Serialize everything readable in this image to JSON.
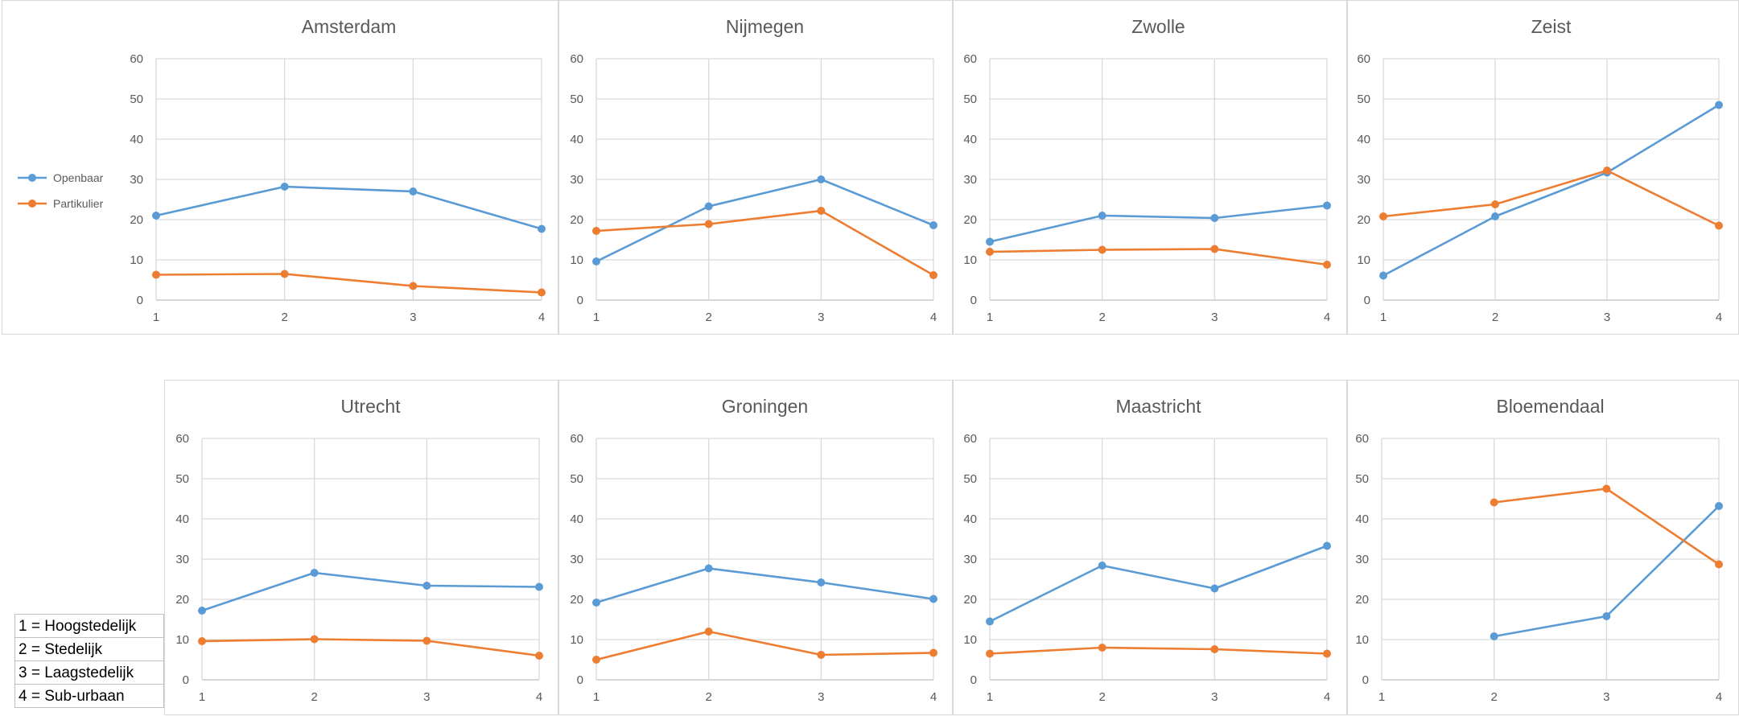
{
  "legend": {
    "series": [
      {
        "name": "Openbaar",
        "color": "#5b9bd5"
      },
      {
        "name": "Partikulier",
        "color": "#ed7d31"
      }
    ]
  },
  "key": [
    "1 = Hoogstedelijk",
    "2 = Stedelijk",
    "3 = Laagstedelijk",
    "4 = Sub-urbaan"
  ],
  "chart_data": [
    {
      "type": "line",
      "title": "Amsterdam",
      "x": [
        1,
        2,
        3,
        4
      ],
      "ylim": [
        0,
        60
      ],
      "yticks": [
        0,
        10,
        20,
        30,
        40,
        50,
        60
      ],
      "grid": true,
      "series": [
        {
          "name": "Openbaar",
          "values": [
            21,
            28.2,
            27,
            17.7
          ]
        },
        {
          "name": "Partikulier",
          "values": [
            6.3,
            6.5,
            3.5,
            1.9
          ]
        }
      ]
    },
    {
      "type": "line",
      "title": "Nijmegen",
      "x": [
        1,
        2,
        3,
        4
      ],
      "ylim": [
        0,
        60
      ],
      "yticks": [
        0,
        10,
        20,
        30,
        40,
        50,
        60
      ],
      "grid": true,
      "series": [
        {
          "name": "Openbaar",
          "values": [
            9.6,
            23.3,
            30,
            18.6
          ]
        },
        {
          "name": "Partikulier",
          "values": [
            17.2,
            18.9,
            22.2,
            6.2
          ]
        }
      ]
    },
    {
      "type": "line",
      "title": "Zwolle",
      "x": [
        1,
        2,
        3,
        4
      ],
      "ylim": [
        0,
        60
      ],
      "yticks": [
        0,
        10,
        20,
        30,
        40,
        50,
        60
      ],
      "grid": true,
      "series": [
        {
          "name": "Openbaar",
          "values": [
            14.5,
            21,
            20.4,
            23.5
          ]
        },
        {
          "name": "Partikulier",
          "values": [
            12,
            12.5,
            12.7,
            8.8
          ]
        }
      ]
    },
    {
      "type": "line",
      "title": "Zeist",
      "x": [
        1,
        2,
        3,
        4
      ],
      "ylim": [
        0,
        60
      ],
      "yticks": [
        0,
        10,
        20,
        30,
        40,
        50,
        60
      ],
      "grid": true,
      "series": [
        {
          "name": "Openbaar",
          "values": [
            6.1,
            20.8,
            31.7,
            48.5
          ]
        },
        {
          "name": "Partikulier",
          "values": [
            20.8,
            23.8,
            32.2,
            18.5
          ]
        }
      ]
    },
    {
      "type": "line",
      "title": "Utrecht",
      "x": [
        1,
        2,
        3,
        4
      ],
      "ylim": [
        0,
        60
      ],
      "yticks": [
        0,
        10,
        20,
        30,
        40,
        50,
        60
      ],
      "grid": true,
      "series": [
        {
          "name": "Openbaar",
          "values": [
            17.2,
            26.6,
            23.4,
            23.1
          ]
        },
        {
          "name": "Partikulier",
          "values": [
            9.6,
            10.1,
            9.7,
            6
          ]
        }
      ]
    },
    {
      "type": "line",
      "title": "Groningen",
      "x": [
        1,
        2,
        3,
        4
      ],
      "ylim": [
        0,
        60
      ],
      "yticks": [
        0,
        10,
        20,
        30,
        40,
        50,
        60
      ],
      "grid": true,
      "series": [
        {
          "name": "Openbaar",
          "values": [
            19.2,
            27.7,
            24.2,
            20.1
          ]
        },
        {
          "name": "Partikulier",
          "values": [
            5,
            12,
            6.2,
            6.7
          ]
        }
      ]
    },
    {
      "type": "line",
      "title": "Maastricht",
      "x": [
        1,
        2,
        3,
        4
      ],
      "ylim": [
        0,
        60
      ],
      "yticks": [
        0,
        10,
        20,
        30,
        40,
        50,
        60
      ],
      "grid": true,
      "series": [
        {
          "name": "Openbaar",
          "values": [
            14.5,
            28.4,
            22.7,
            33.3
          ]
        },
        {
          "name": "Partikulier",
          "values": [
            6.5,
            8,
            7.6,
            6.5
          ]
        }
      ]
    },
    {
      "type": "line",
      "title": "Bloemendaal",
      "x": [
        1,
        2,
        3,
        4
      ],
      "ylim": [
        0,
        60
      ],
      "yticks": [
        0,
        10,
        20,
        30,
        40,
        50,
        60
      ],
      "grid": true,
      "series": [
        {
          "name": "Openbaar",
          "values": [
            null,
            10.8,
            15.8,
            43.2
          ]
        },
        {
          "name": "Partikulier",
          "values": [
            null,
            44.1,
            47.5,
            28.7
          ]
        }
      ]
    }
  ]
}
